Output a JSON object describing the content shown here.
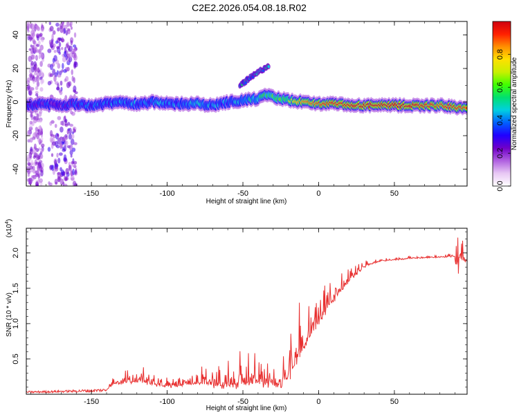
{
  "title": "C2E2.2026.054.08.18.R02",
  "chart_data": [
    {
      "type": "heatmap",
      "xlabel": "Height of straight line (km)",
      "ylabel": "Frequency (Hz)",
      "xlim": [
        -193,
        98
      ],
      "ylim": [
        -50,
        48
      ],
      "xticks": [
        -150,
        -100,
        -50,
        0,
        50
      ],
      "yticks": [
        -40,
        -20,
        0,
        20,
        40
      ],
      "xtick_labels": [
        "-150",
        "-100",
        "-50",
        "0",
        "50"
      ],
      "ytick_labels": [
        "-40",
        "-20",
        "0",
        "20",
        "40"
      ],
      "colorbar": {
        "label": "Normalized spectral amplitude",
        "range": [
          0.0,
          1.0
        ],
        "ticks": [
          0.0,
          0.2,
          0.4,
          0.6,
          0.8
        ],
        "tick_labels": [
          "0.0",
          "0.2",
          "0.4",
          "0.6",
          "0.8"
        ],
        "colors": [
          "#ffffff",
          "#e8c8f4",
          "#b060e0",
          "#7000c8",
          "#2000ff",
          "#0060ff",
          "#00d0e0",
          "#00e070",
          "#40ff00",
          "#c8f000",
          "#ffe000",
          "#ff9000",
          "#ff2000",
          "#d00010"
        ]
      },
      "ridge": {
        "x": [
          -193,
          -180,
          -170,
          -160,
          -150,
          -140,
          -130,
          -120,
          -110,
          -100,
          -90,
          -80,
          -70,
          -60,
          -50,
          -40,
          -35,
          -30,
          -20,
          -10,
          0,
          10,
          20,
          30,
          40,
          50,
          60,
          70,
          80,
          90,
          98
        ],
        "freq": [
          -2,
          -1,
          -2,
          -1,
          -2,
          -1,
          0,
          -1,
          0,
          -1,
          -1,
          -1,
          -2,
          0,
          1,
          2,
          4,
          3,
          1,
          0,
          -1,
          -1,
          -2,
          -2,
          -2,
          -2,
          -2,
          -2,
          -2,
          -3,
          -4
        ],
        "amplitude": [
          0.3,
          0.35,
          0.3,
          0.35,
          0.4,
          0.4,
          0.45,
          0.45,
          0.45,
          0.45,
          0.45,
          0.5,
          0.45,
          0.45,
          0.5,
          0.55,
          0.6,
          0.65,
          0.7,
          0.8,
          0.85,
          0.9,
          0.92,
          0.95,
          0.95,
          0.95,
          0.95,
          0.9,
          0.85,
          0.9,
          0.85
        ]
      },
      "features": [
        {
          "x_range": [
            -52,
            -33
          ],
          "freq_range": [
            10,
            22
          ],
          "amplitude": 0.3
        },
        {
          "x_range": [
            -192,
            -182
          ],
          "freq_range": [
            -50,
            48
          ],
          "amplitude": 0.08
        },
        {
          "x_range": [
            -178,
            -160
          ],
          "freq_range": [
            -50,
            48
          ],
          "amplitude": 0.12
        }
      ]
    },
    {
      "type": "line",
      "xlabel": "Height of straight line (km)",
      "ylabel": "SNR (10 * v/v)",
      "y_multiplier_label": "(x10",
      "y_multiplier_exponent": "4",
      "xlim": [
        -193,
        98
      ],
      "ylim": [
        0,
        2.35
      ],
      "xticks": [
        -150,
        -100,
        -50,
        0,
        50
      ],
      "yticks": [
        0.5,
        1.0,
        1.5,
        2.0
      ],
      "xtick_labels": [
        "-150",
        "-100",
        "-50",
        "0",
        "50"
      ],
      "ytick_labels": [
        "0.5",
        "1.0",
        "1.5",
        "2.0"
      ],
      "color": "#e83030",
      "series_envelope": {
        "x": [
          -193,
          -170,
          -150,
          -140,
          -135,
          -120,
          -110,
          -100,
          -90,
          -80,
          -70,
          -60,
          -50,
          -40,
          -35,
          -30,
          -25,
          -20,
          -15,
          -10,
          -5,
          0,
          5,
          10,
          15,
          20,
          25,
          30,
          40,
          50,
          60,
          70,
          80,
          90,
          92,
          95,
          98
        ],
        "base": [
          0.03,
          0.04,
          0.05,
          0.06,
          0.15,
          0.18,
          0.15,
          0.1,
          0.12,
          0.15,
          0.13,
          0.12,
          0.15,
          0.15,
          0.13,
          0.15,
          0.08,
          0.25,
          0.45,
          0.65,
          0.85,
          1.0,
          1.2,
          1.35,
          1.45,
          1.6,
          1.7,
          1.8,
          1.88,
          1.9,
          1.92,
          1.93,
          1.94,
          1.95,
          1.95,
          1.9,
          1.88
        ],
        "amp": [
          0.02,
          0.02,
          0.03,
          0.03,
          0.12,
          0.3,
          0.2,
          0.15,
          0.2,
          0.25,
          0.3,
          0.35,
          0.55,
          0.4,
          0.35,
          0.3,
          0.25,
          0.8,
          0.9,
          0.8,
          0.6,
          0.5,
          0.4,
          0.4,
          0.35,
          0.2,
          0.15,
          0.1,
          0.05,
          0.04,
          0.04,
          0.04,
          0.04,
          0.05,
          0.3,
          0.35,
          0.03
        ]
      }
    }
  ]
}
